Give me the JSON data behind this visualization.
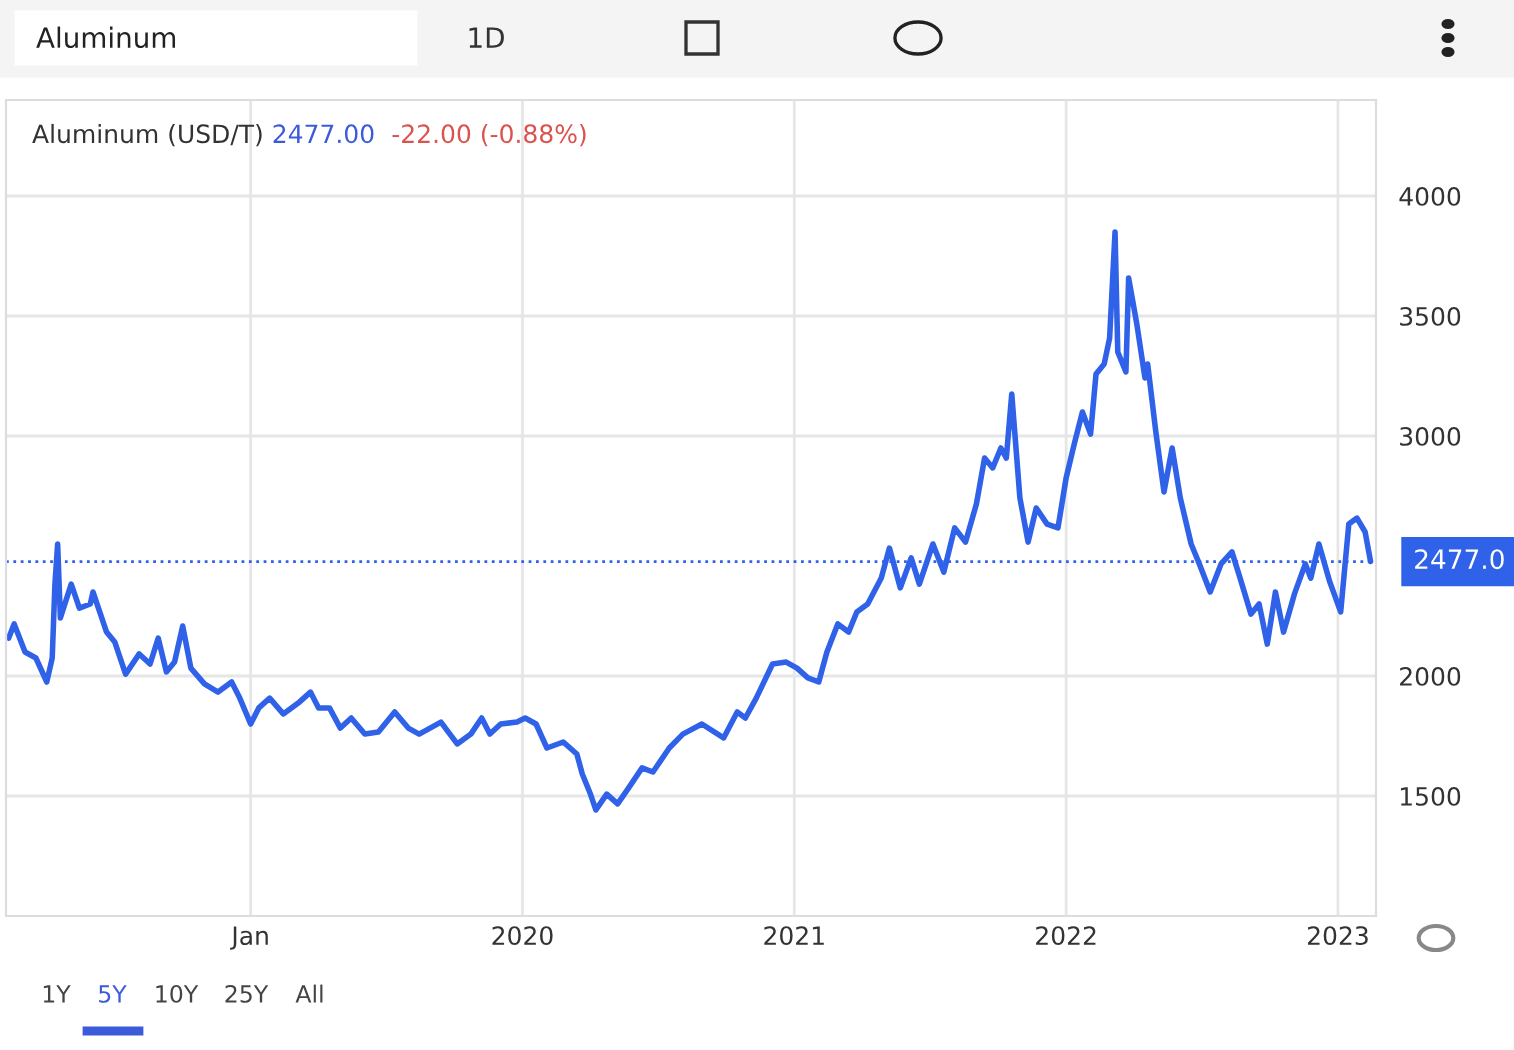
{
  "chart_data": {
    "type": "line",
    "title": "Aluminum (USD/T)",
    "annotations": [
      "2477.00",
      "-22.00 (-0.88%)",
      "Aluminum",
      "1D",
      "1Y",
      "5Y",
      "10Y",
      "25Y",
      "All"
    ],
    "x": [
      2018.11,
      2018.13,
      2018.17,
      2018.21,
      2018.25,
      2018.27,
      2018.28,
      2018.29,
      2018.3,
      2018.34,
      2018.37,
      2018.41,
      2018.42,
      2018.47,
      2018.5,
      2018.54,
      2018.59,
      2018.63,
      2018.66,
      2018.69,
      2018.72,
      2018.75,
      2018.78,
      2018.83,
      2018.88,
      2018.93,
      2018.96,
      2019.0,
      2019.03,
      2019.07,
      2019.12,
      2019.18,
      2019.22,
      2019.25,
      2019.29,
      2019.33,
      2019.37,
      2019.42,
      2019.47,
      2019.53,
      2019.58,
      2019.62,
      2019.66,
      2019.7,
      2019.76,
      2019.81,
      2019.85,
      2019.88,
      2019.92,
      2019.98,
      2020.01,
      2020.05,
      2020.09,
      2020.15,
      2020.2,
      2020.22,
      2020.25,
      2020.27,
      2020.31,
      2020.35,
      2020.39,
      2020.44,
      2020.48,
      2020.54,
      2020.59,
      2020.66,
      2020.74,
      2020.79,
      2020.82,
      2020.86,
      2020.92,
      2020.97,
      2021.01,
      2021.05,
      2021.09,
      2021.12,
      2021.16,
      2021.2,
      2021.23,
      2021.27,
      2021.32,
      2021.35,
      2021.39,
      2021.43,
      2021.46,
      2021.51,
      2021.55,
      2021.59,
      2021.63,
      2021.67,
      2021.7,
      2021.73,
      2021.76,
      2021.78,
      2021.8,
      2021.83,
      2021.86,
      2021.89,
      2021.93,
      2021.97,
      2022.0,
      2022.03,
      2022.06,
      2022.09,
      2022.11,
      2022.14,
      2022.16,
      2022.18,
      2022.19,
      2022.22,
      2022.23,
      2022.26,
      2022.29,
      2022.3,
      2022.33,
      2022.36,
      2022.39,
      2022.42,
      2022.46,
      2022.49,
      2022.53,
      2022.57,
      2022.61,
      2022.64,
      2022.68,
      2022.71,
      2022.74,
      2022.77,
      2022.8,
      2022.84,
      2022.88,
      2022.9,
      2022.93,
      2022.97,
      2023.01,
      2023.04,
      2023.07,
      2023.1,
      2023.12
    ],
    "series": [
      {
        "color": "#2f62e8",
        "values": [
          2158,
          2217,
          2100,
          2075,
          1975,
          2075,
          2383,
          2550,
          2242,
          2383,
          2283,
          2300,
          2350,
          2183,
          2142,
          2008,
          2092,
          2050,
          2158,
          2017,
          2058,
          2208,
          2033,
          1967,
          1933,
          1975,
          1908,
          1800,
          1867,
          1908,
          1842,
          1892,
          1933,
          1867,
          1867,
          1783,
          1825,
          1758,
          1767,
          1850,
          1783,
          1758,
          1783,
          1808,
          1717,
          1758,
          1825,
          1758,
          1800,
          1808,
          1825,
          1800,
          1700,
          1725,
          1675,
          1592,
          1508,
          1442,
          1508,
          1467,
          1533,
          1617,
          1600,
          1700,
          1758,
          1800,
          1742,
          1850,
          1825,
          1908,
          2050,
          2058,
          2033,
          1992,
          1975,
          2100,
          2217,
          2183,
          2267,
          2300,
          2408,
          2533,
          2367,
          2492,
          2383,
          2550,
          2433,
          2617,
          2558,
          2717,
          2908,
          2867,
          2950,
          2908,
          3175,
          2742,
          2558,
          2700,
          2633,
          2617,
          2825,
          2967,
          3100,
          3008,
          3258,
          3300,
          3408,
          3850,
          3350,
          3267,
          3658,
          3467,
          3242,
          3300,
          3017,
          2767,
          2950,
          2742,
          2550,
          2467,
          2350,
          2467,
          2517,
          2408,
          2258,
          2300,
          2133,
          2350,
          2183,
          2342,
          2467,
          2408,
          2550,
          2392,
          2267,
          2633,
          2658,
          2600,
          2477
        ]
      }
    ],
    "xlim": [
      2018.1,
      2023.14
    ],
    "xticks": [
      {
        "value": 2019,
        "label": "Jan"
      },
      2020,
      2021,
      2022,
      2023
    ],
    "ylim": [
      1000,
      4400
    ],
    "yticks": [
      1500,
      2000,
      3000,
      3500,
      4000
    ],
    "ref_lines": [
      {
        "axis": "y",
        "value": 2477,
        "label": "2477.0",
        "color": "#2f62e8",
        "line_style": "dotted"
      }
    ],
    "grid": true,
    "legend": false,
    "marker": "none",
    "line_style": "solid"
  }
}
